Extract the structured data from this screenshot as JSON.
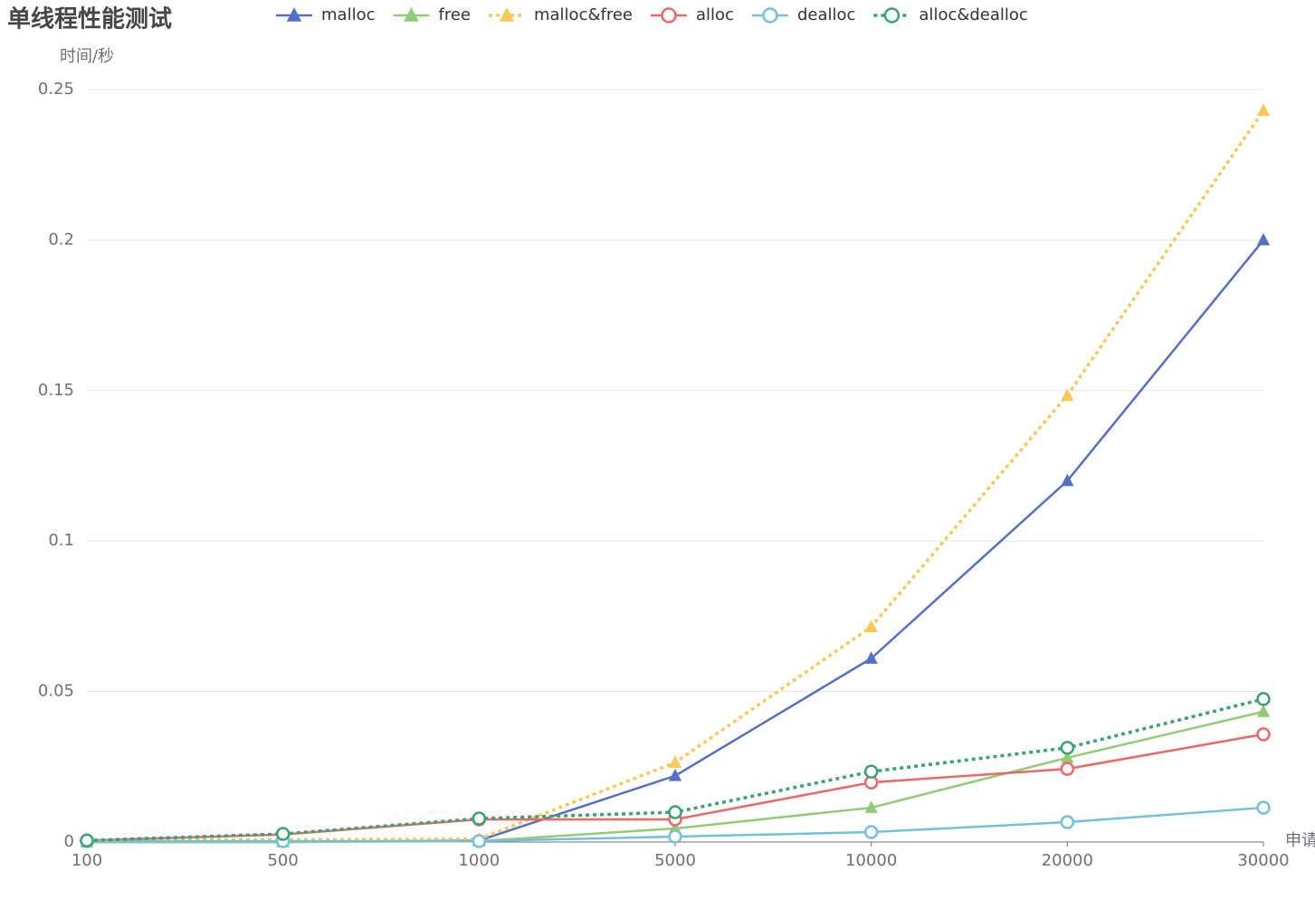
{
  "chart_data": {
    "type": "line",
    "title": "单线程性能测试",
    "y_label": "时间/秒",
    "x_label": "申请",
    "categories": [
      "100",
      "500",
      "1000",
      "5000",
      "10000",
      "20000",
      "30000"
    ],
    "ylim": [
      0,
      0.25
    ],
    "yticks": [
      0,
      0.05,
      0.1,
      0.15,
      0.2,
      0.25
    ],
    "grid": true,
    "series": [
      {
        "name": "malloc",
        "color": "#5470c6",
        "symbol": "triangle",
        "line_style": "solid",
        "values": [
          0,
          0,
          0.0005,
          0.022,
          0.061,
          0.12,
          0.2
        ]
      },
      {
        "name": "free",
        "color": "#91cc75",
        "symbol": "triangle",
        "line_style": "solid",
        "values": [
          0,
          0,
          0.0003,
          0.0045,
          0.0114,
          0.028,
          0.0433
        ]
      },
      {
        "name": "malloc&free",
        "color": "#fac858",
        "symbol": "triangle",
        "line_style": "dotted",
        "values": [
          0.0005,
          0.0008,
          0.001,
          0.0264,
          0.0715,
          0.1484,
          0.243
        ]
      },
      {
        "name": "alloc",
        "color": "#ee6666",
        "symbol": "circle",
        "line_style": "solid",
        "values": [
          0.0005,
          0.0025,
          0.0075,
          0.0075,
          0.0198,
          0.0243,
          0.0358
        ]
      },
      {
        "name": "dealloc",
        "color": "#73c0de",
        "symbol": "circle",
        "line_style": "solid",
        "values": [
          0.0003,
          0.0003,
          0.0003,
          0.0018,
          0.0033,
          0.0066,
          0.0114
        ]
      },
      {
        "name": "alloc&dealloc",
        "color": "#3ba272",
        "symbol": "circle",
        "line_style": "dotted",
        "values": [
          0.0005,
          0.0027,
          0.0078,
          0.0099,
          0.0234,
          0.0313,
          0.0475
        ]
      }
    ]
  }
}
